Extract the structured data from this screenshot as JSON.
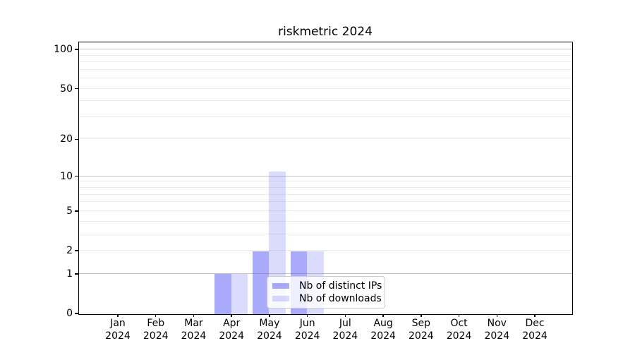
{
  "chart_data": {
    "type": "bar",
    "title": "riskmetric 2024",
    "categories": [
      "Jan 2024",
      "Feb 2024",
      "Mar 2024",
      "Apr 2024",
      "May 2024",
      "Jun 2024",
      "Jul 2024",
      "Aug 2024",
      "Sep 2024",
      "Oct 2024",
      "Nov 2024",
      "Dec 2024"
    ],
    "series": [
      {
        "name": "Nb of distinct IPs",
        "values": [
          0,
          0,
          0,
          1,
          2,
          2,
          0,
          0,
          0,
          0,
          0,
          0
        ],
        "color": "rgba(100,100,245,0.55)"
      },
      {
        "name": "Nb of downloads",
        "values": [
          0,
          0,
          0,
          1,
          11,
          2,
          0,
          0,
          0,
          0,
          0,
          0
        ],
        "color": "rgba(100,100,245,0.23)"
      }
    ],
    "xlabel": "",
    "ylabel": "",
    "yscale": "log1p",
    "ylim": [
      0,
      110
    ],
    "yticks": [
      0,
      1,
      2,
      5,
      10,
      20,
      50,
      100
    ],
    "grid": "on",
    "major_gridlines": [
      1,
      10,
      100
    ],
    "minor_gridlines": [
      2,
      3,
      4,
      5,
      6,
      7,
      8,
      9,
      20,
      30,
      40,
      50,
      60,
      70,
      80,
      90
    ],
    "legend_position": "inside lower-center"
  },
  "legend": {
    "items": [
      {
        "label": "Nb of distinct IPs",
        "color": "rgba(100,100,245,0.55)"
      },
      {
        "label": "Nb of downloads",
        "color": "rgba(100,100,245,0.23)"
      }
    ]
  },
  "colors": {
    "bar_dark": "rgba(100,100,245,0.55)",
    "bar_light": "rgba(100,100,245,0.23)",
    "major_grid": "#c3c3c3",
    "minor_grid": "#ebebeb",
    "spine": "#000000",
    "background": "#ffffff"
  }
}
